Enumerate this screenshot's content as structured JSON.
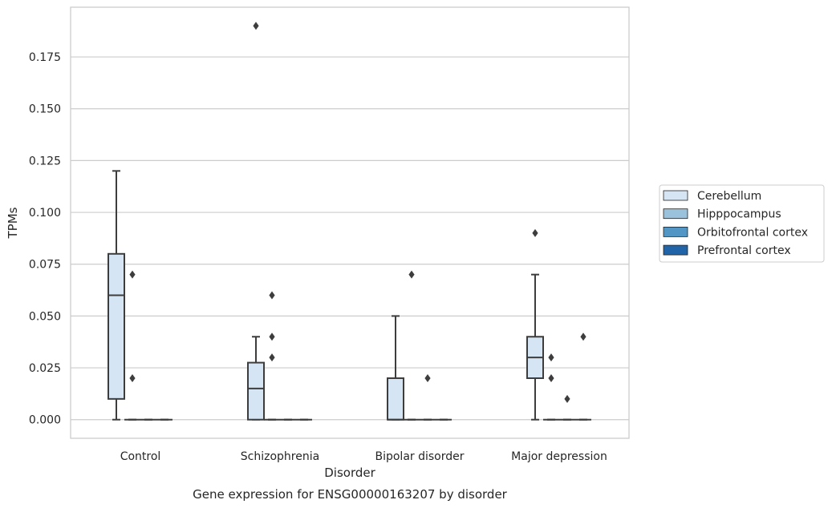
{
  "chart_data": {
    "type": "box",
    "xlabel": "Disorder",
    "ylabel": "TPMs",
    "caption": "Gene expression for ENSG00000163207 by disorder",
    "ylim": [
      -0.009,
      0.199
    ],
    "yticks": [
      "0.000",
      "0.025",
      "0.050",
      "0.075",
      "0.100",
      "0.125",
      "0.150",
      "0.175"
    ],
    "categories": [
      "Control",
      "Schizophrenia",
      "Bipolar disorder",
      "Major depression"
    ],
    "grid": "horizontal",
    "legend_position": "right",
    "series": [
      {
        "name": "Cerebellum",
        "color": "#d6e5f3",
        "boxes": [
          {
            "whisker_low": 0.0,
            "q1": 0.01,
            "median": 0.06,
            "q3": 0.08,
            "whisker_high": 0.12,
            "outliers": []
          },
          {
            "whisker_low": 0.0,
            "q1": 0.0,
            "median": 0.015,
            "q3": 0.0275,
            "whisker_high": 0.04,
            "outliers": [
              0.19
            ]
          },
          {
            "whisker_low": 0.0,
            "q1": 0.0,
            "median": 0.0,
            "q3": 0.02,
            "whisker_high": 0.05,
            "outliers": []
          },
          {
            "whisker_low": 0.0,
            "q1": 0.02,
            "median": 0.03,
            "q3": 0.04,
            "whisker_high": 0.07,
            "outliers": [
              0.09
            ]
          }
        ]
      },
      {
        "name": "Hipppocampus",
        "color": "#9ac2dd",
        "boxes": [
          {
            "whisker_low": 0.0,
            "q1": 0.0,
            "median": 0.0,
            "q3": 0.0,
            "whisker_high": 0.0,
            "outliers": [
              0.02,
              0.07
            ]
          },
          {
            "whisker_low": 0.0,
            "q1": 0.0,
            "median": 0.0,
            "q3": 0.0,
            "whisker_high": 0.0,
            "outliers": [
              0.03,
              0.04,
              0.06
            ]
          },
          {
            "whisker_low": 0.0,
            "q1": 0.0,
            "median": 0.0,
            "q3": 0.0,
            "whisker_high": 0.0,
            "outliers": [
              0.07
            ]
          },
          {
            "whisker_low": 0.0,
            "q1": 0.0,
            "median": 0.0,
            "q3": 0.0,
            "whisker_high": 0.0,
            "outliers": [
              0.02,
              0.03
            ]
          }
        ]
      },
      {
        "name": "Orbitofrontal cortex",
        "color": "#5196c5",
        "boxes": [
          {
            "whisker_low": 0.0,
            "q1": 0.0,
            "median": 0.0,
            "q3": 0.0,
            "whisker_high": 0.0,
            "outliers": []
          },
          {
            "whisker_low": 0.0,
            "q1": 0.0,
            "median": 0.0,
            "q3": 0.0,
            "whisker_high": 0.0,
            "outliers": []
          },
          {
            "whisker_low": 0.0,
            "q1": 0.0,
            "median": 0.0,
            "q3": 0.0,
            "whisker_high": 0.0,
            "outliers": [
              0.02
            ]
          },
          {
            "whisker_low": 0.0,
            "q1": 0.0,
            "median": 0.0,
            "q3": 0.0,
            "whisker_high": 0.0,
            "outliers": [
              0.01
            ]
          }
        ]
      },
      {
        "name": "Prefrontal cortex",
        "color": "#2164a8",
        "boxes": [
          {
            "whisker_low": 0.0,
            "q1": 0.0,
            "median": 0.0,
            "q3": 0.0,
            "whisker_high": 0.0,
            "outliers": []
          },
          {
            "whisker_low": 0.0,
            "q1": 0.0,
            "median": 0.0,
            "q3": 0.0,
            "whisker_high": 0.0,
            "outliers": []
          },
          {
            "whisker_low": 0.0,
            "q1": 0.0,
            "median": 0.0,
            "q3": 0.0,
            "whisker_high": 0.0,
            "outliers": []
          },
          {
            "whisker_low": 0.0,
            "q1": 0.0,
            "median": 0.0,
            "q3": 0.0,
            "whisker_high": 0.0,
            "outliers": [
              0.04
            ]
          }
        ]
      }
    ]
  }
}
